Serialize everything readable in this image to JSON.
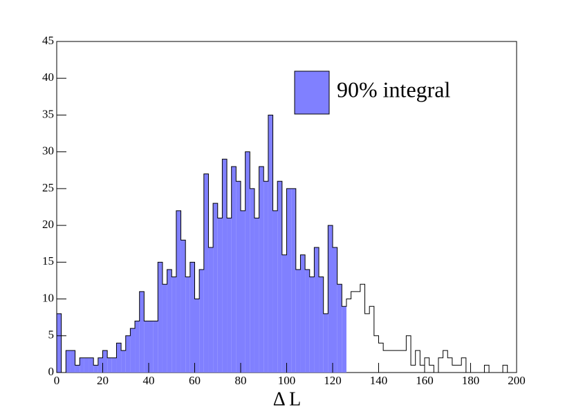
{
  "chart_data": {
    "type": "histogram",
    "xlabel": "Δ L",
    "bins": [
      0,
      2,
      4,
      6,
      8,
      10,
      12,
      14,
      16,
      18,
      20,
      22,
      24,
      26,
      28,
      30,
      32,
      34,
      36,
      38,
      40,
      42,
      44,
      46,
      48,
      50,
      52,
      54,
      56,
      58,
      60,
      62,
      64,
      66,
      68,
      70,
      72,
      74,
      76,
      78,
      80,
      82,
      84,
      86,
      88,
      90,
      92,
      94,
      96,
      98,
      100,
      102,
      104,
      106,
      108,
      110,
      112,
      114,
      116,
      118,
      120,
      122,
      124,
      126,
      128,
      130,
      132,
      134,
      136,
      138,
      140,
      142,
      144,
      146,
      148,
      150,
      152,
      154,
      156,
      158,
      160,
      162,
      164,
      166,
      168,
      170,
      172,
      174,
      176,
      178,
      180,
      182,
      184,
      186,
      188,
      190,
      192,
      194,
      196,
      198,
      200
    ],
    "values": [
      8,
      0,
      3,
      3,
      1,
      2,
      2,
      2,
      1,
      2,
      3,
      2,
      2,
      4,
      3,
      5,
      6,
      7,
      11,
      7,
      7,
      7,
      15,
      12,
      14,
      13,
      22,
      18,
      13,
      15,
      10,
      14,
      27,
      17,
      23,
      21,
      29,
      21,
      28,
      26,
      22,
      30,
      25,
      21,
      28,
      26,
      35,
      22,
      26,
      16,
      25,
      25,
      14,
      16,
      14,
      13,
      17,
      13,
      8,
      20,
      17,
      12,
      9,
      10,
      11,
      11,
      12,
      8,
      9,
      5,
      4,
      3,
      3,
      3,
      3,
      3,
      5,
      1,
      3,
      1,
      2,
      1,
      0,
      2,
      3,
      2,
      1,
      1,
      2,
      0,
      0,
      0,
      0,
      1,
      0,
      0,
      0,
      1,
      0,
      0
    ],
    "color": "#8080ff",
    "fill_xlim": [
      0,
      126
    ],
    "legend": "90% integral",
    "legend_position": "upper right",
    "xlim": [
      0,
      200
    ],
    "xticks": [
      0,
      20,
      40,
      60,
      80,
      100,
      120,
      140,
      160,
      180,
      200
    ],
    "ylim": [
      0,
      45
    ],
    "yticks": [
      0,
      5,
      10,
      15,
      20,
      25,
      30,
      35,
      40,
      45
    ]
  }
}
